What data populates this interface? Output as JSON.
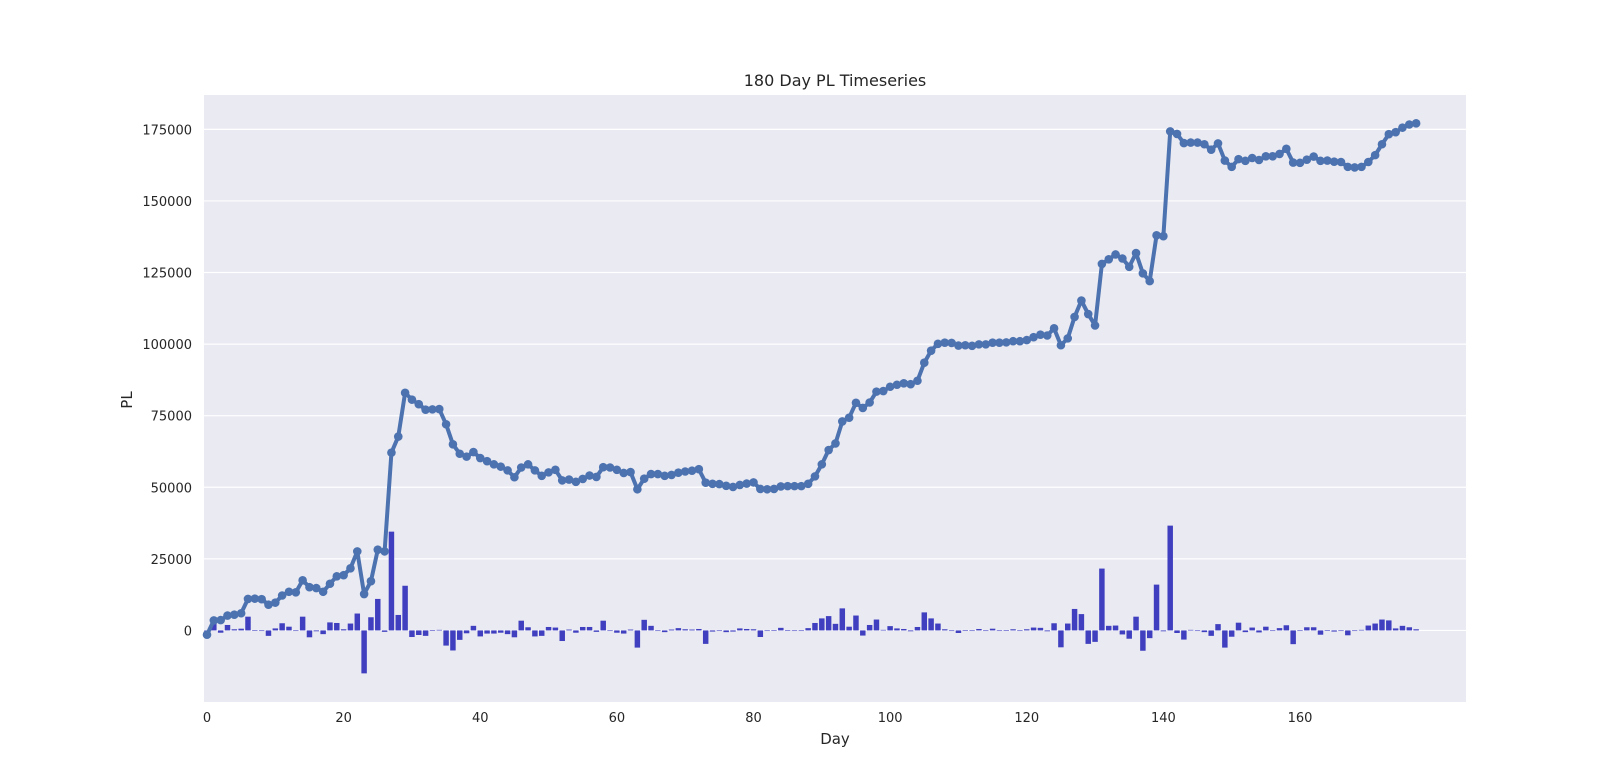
{
  "chart_data": {
    "type": "line",
    "title": "180 Day PL Timeseries",
    "xlabel": "Day",
    "ylabel": "PL",
    "xlim": [
      0,
      177
    ],
    "ylim": [
      -25000,
      187000
    ],
    "x_ticks": [
      0,
      20,
      40,
      60,
      80,
      100,
      120,
      140,
      160
    ],
    "y_ticks": [
      0,
      25000,
      50000,
      75000,
      100000,
      125000,
      150000,
      175000
    ],
    "grid": true,
    "legend": "none",
    "colors": {
      "background": "#EAEAF2",
      "grid": "#FFFFFF",
      "line": "#4C72B0",
      "bar": "#3F3FBF"
    },
    "series": [
      {
        "type": "line",
        "x_start": 0,
        "values": [
          -1500,
          3500,
          3600,
          5200,
          5500,
          6000,
          11000,
          11100,
          10900,
          9000,
          9700,
          12200,
          13500,
          13300,
          17500,
          15100,
          14800,
          13500,
          16300,
          18900,
          19300,
          21700,
          27600,
          12700,
          17200,
          28200,
          27600,
          62100,
          67700,
          83000,
          80600,
          79000,
          77100,
          77200,
          77300,
          72000,
          65000,
          61700,
          60700,
          62300,
          60200,
          59100,
          58000,
          57200,
          55900,
          53500,
          56900,
          58000,
          55900,
          54000,
          55200,
          56100,
          52400,
          52700,
          51900,
          52900,
          54100,
          53600,
          57000,
          56900,
          56100,
          55000,
          55300,
          49300,
          53000,
          54600,
          54600,
          54000,
          54300,
          55100,
          55500,
          55800,
          56300,
          51600,
          51200,
          51100,
          50500,
          50100,
          50800,
          51300,
          51700,
          49400,
          49300,
          49400,
          50300,
          50400,
          50400,
          50400,
          51200,
          53800,
          58000,
          63000,
          65300,
          73000,
          74300,
          79500,
          77700,
          79600,
          83400,
          83600,
          85100,
          85800,
          86300,
          86000,
          87200,
          93500,
          97700,
          100100,
          100500,
          100400,
          99500,
          99600,
          99400,
          99900,
          99900,
          100500,
          100500,
          100600,
          101000,
          101000,
          101400,
          102400,
          103300,
          103000,
          105500,
          99600,
          102000,
          109500,
          115200,
          110500,
          106500,
          128000,
          129600,
          131300,
          129900,
          127000,
          131800,
          124700,
          122000,
          138000,
          137700,
          174300,
          173400,
          170200,
          170400,
          170400,
          169800,
          167900,
          170100,
          164100,
          161900,
          164600,
          164000,
          165000,
          164300,
          165600,
          165600,
          166400,
          168200,
          163400,
          163300,
          164400,
          165500,
          164000,
          164100,
          163700,
          163600,
          161900,
          161700,
          161900,
          163600,
          166000,
          169800,
          173300,
          174000,
          175600,
          176700,
          177100
        ]
      },
      {
        "type": "bar",
        "x_start": 0,
        "values": [
          -500,
          2400,
          -800,
          1900,
          400,
          600,
          4800,
          100,
          -200,
          -1900,
          700,
          2500,
          1300,
          -200,
          4800,
          -2400,
          -300,
          -1300,
          2800,
          2600,
          400,
          2400,
          5900,
          -15000,
          4600,
          11000,
          -500,
          34500,
          5400,
          15600,
          -2300,
          -1600,
          -1900,
          100,
          200,
          -5300,
          -7000,
          -3300,
          -1000,
          1600,
          -2100,
          -1100,
          -1100,
          -800,
          -1300,
          -2400,
          3400,
          1100,
          -2100,
          -1900,
          1200,
          1000,
          -3700,
          300,
          -800,
          1200,
          1200,
          -500,
          3400,
          -100,
          -800,
          -1100,
          300,
          -6000,
          3700,
          1600,
          0,
          -600,
          300,
          800,
          400,
          300,
          500,
          -4700,
          -400,
          -100,
          -600,
          -400,
          700,
          500,
          400,
          -2300,
          -100,
          100,
          900,
          100,
          0,
          0,
          800,
          2600,
          4200,
          5000,
          2300,
          7700,
          1300,
          5200,
          -1800,
          1900,
          3800,
          200,
          1500,
          700,
          500,
          -300,
          1200,
          6300,
          4200,
          2400,
          400,
          -100,
          -900,
          100,
          -200,
          500,
          0,
          600,
          0,
          100,
          400,
          0,
          400,
          1000,
          900,
          -300,
          2500,
          -5900,
          2400,
          7500,
          5700,
          -4700,
          -4000,
          21600,
          1600,
          1700,
          -1400,
          -2900,
          4800,
          -7100,
          -2700,
          16000,
          -300,
          36600,
          -900,
          -3200,
          200,
          0,
          -600,
          -1900,
          2200,
          -6000,
          -2200,
          2700,
          -600,
          1000,
          -700,
          1300,
          0,
          800,
          1800,
          -4800,
          -100,
          1100,
          1100,
          -1500,
          100,
          -400,
          -100,
          -1700,
          -200,
          200,
          1700,
          2400,
          3800,
          3500,
          700,
          1600,
          1100,
          400
        ]
      }
    ]
  }
}
